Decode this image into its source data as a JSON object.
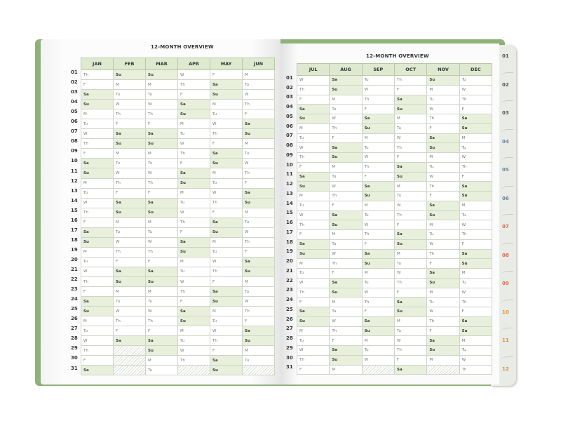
{
  "left_page": {
    "title": "12-MONTH OVERVIEW",
    "months": [
      {
        "name": "JAN",
        "days": [
          "Th",
          "F",
          "Sa",
          "Su",
          "M",
          "Tu",
          "W",
          "Th",
          "F",
          "Sa",
          "Su",
          "M",
          "Tu",
          "W",
          "Th",
          "F",
          "Sa",
          "Su",
          "M",
          "Tu",
          "W",
          "Th",
          "F",
          "Sa",
          "Su",
          "M",
          "Tu",
          "W",
          "Th",
          "F",
          "Sa"
        ]
      },
      {
        "name": "FEB",
        "days": [
          "Su",
          "M",
          "Tu",
          "W",
          "Th",
          "F",
          "Sa",
          "Su",
          "M",
          "Tu",
          "W",
          "Th",
          "F",
          "Sa",
          "Su",
          "M",
          "Tu",
          "W",
          "Th",
          "F",
          "Sa",
          "Su",
          "M",
          "Tu",
          "W",
          "Th",
          "F",
          "Sa"
        ]
      },
      {
        "name": "MAR",
        "days": [
          "Su",
          "M",
          "Tu",
          "W",
          "Th",
          "F",
          "Sa",
          "Su",
          "M",
          "Tu",
          "W",
          "Th",
          "F",
          "Sa",
          "Su",
          "M",
          "Tu",
          "W",
          "Th",
          "F",
          "Sa",
          "Su",
          "M",
          "Tu",
          "W",
          "Th",
          "F",
          "Sa",
          "Su",
          "M",
          "Tu"
        ]
      },
      {
        "name": "APR",
        "days": [
          "W",
          "Th",
          "F",
          "Sa",
          "Su",
          "M",
          "Tu",
          "W",
          "Th",
          "F",
          "Sa",
          "Su",
          "M",
          "Tu",
          "W",
          "Th",
          "F",
          "Sa",
          "Su",
          "M",
          "Tu",
          "W",
          "Th",
          "F",
          "Sa",
          "Su",
          "M",
          "Tu",
          "W",
          "Th"
        ]
      },
      {
        "name": "MAY",
        "days": [
          "F",
          "Sa",
          "Su",
          "M",
          "Tu",
          "W",
          "Th",
          "F",
          "Sa",
          "Su",
          "M",
          "Tu",
          "W",
          "Th",
          "F",
          "Sa",
          "Su",
          "M",
          "Tu",
          "W",
          "Th",
          "F",
          "Sa",
          "Su",
          "M",
          "Tu",
          "W",
          "Th",
          "F",
          "Sa",
          "Su"
        ]
      },
      {
        "name": "JUN",
        "days": [
          "M",
          "Tu",
          "W",
          "Th",
          "F",
          "Sa",
          "Su",
          "M",
          "Tu",
          "W",
          "Th",
          "F",
          "Sa",
          "Su",
          "M",
          "Tu",
          "W",
          "Th",
          "F",
          "Sa",
          "Su",
          "M",
          "Tu",
          "W",
          "Th",
          "F",
          "Sa",
          "Su",
          "M",
          "Tu"
        ]
      }
    ]
  },
  "right_page": {
    "title": "12-MONTH OVERVIEW",
    "months": [
      {
        "name": "JUL",
        "days": [
          "W",
          "Th",
          "F",
          "Sa",
          "Su",
          "M",
          "Tu",
          "W",
          "Th",
          "F",
          "Sa",
          "Su",
          "M",
          "Tu",
          "W",
          "Th",
          "F",
          "Sa",
          "Su",
          "M",
          "Tu",
          "W",
          "Th",
          "F",
          "Sa",
          "Su",
          "M",
          "Tu",
          "W",
          "Th",
          "F"
        ]
      },
      {
        "name": "AUG",
        "days": [
          "Sa",
          "Su",
          "M",
          "Tu",
          "W",
          "Th",
          "F",
          "Sa",
          "Su",
          "M",
          "Tu",
          "W",
          "Th",
          "F",
          "Sa",
          "Su",
          "M",
          "Tu",
          "W",
          "Th",
          "F",
          "Sa",
          "Su",
          "M",
          "Tu",
          "W",
          "Th",
          "F",
          "Sa",
          "Su",
          "M"
        ]
      },
      {
        "name": "SEP",
        "days": [
          "Tu",
          "W",
          "Th",
          "F",
          "Sa",
          "Su",
          "M",
          "Tu",
          "W",
          "Th",
          "F",
          "Sa",
          "Su",
          "M",
          "Tu",
          "W",
          "Th",
          "F",
          "Sa",
          "Su",
          "M",
          "Tu",
          "W",
          "Th",
          "F",
          "Sa",
          "Su",
          "M",
          "Tu",
          "W"
        ]
      },
      {
        "name": "OCT",
        "days": [
          "Th",
          "F",
          "Sa",
          "Su",
          "M",
          "Tu",
          "W",
          "Th",
          "F",
          "Sa",
          "Su",
          "M",
          "Tu",
          "W",
          "Th",
          "F",
          "Sa",
          "Su",
          "M",
          "Tu",
          "W",
          "Th",
          "F",
          "Sa",
          "Su",
          "M",
          "Tu",
          "W",
          "Th",
          "F",
          "Sa"
        ]
      },
      {
        "name": "NOV",
        "days": [
          "Su",
          "M",
          "Tu",
          "W",
          "Th",
          "F",
          "Sa",
          "Su",
          "M",
          "Tu",
          "W",
          "Th",
          "F",
          "Sa",
          "Su",
          "M",
          "Tu",
          "W",
          "Th",
          "F",
          "Sa",
          "Su",
          "M",
          "Tu",
          "W",
          "Th",
          "F",
          "Sa",
          "Su",
          "M"
        ]
      },
      {
        "name": "DEC",
        "days": [
          "Tu",
          "W",
          "Th",
          "F",
          "Sa",
          "Su",
          "M",
          "Tu",
          "W",
          "Th",
          "F",
          "Sa",
          "Su",
          "M",
          "Tu",
          "W",
          "Th",
          "F",
          "Sa",
          "Su",
          "M",
          "Tu",
          "W",
          "Th",
          "F",
          "Sa",
          "Su",
          "M",
          "Tu",
          "W",
          "Th"
        ]
      }
    ]
  },
  "row_numbers": [
    "01",
    "02",
    "03",
    "04",
    "05",
    "06",
    "07",
    "08",
    "09",
    "10",
    "11",
    "12",
    "13",
    "14",
    "15",
    "16",
    "17",
    "18",
    "19",
    "20",
    "21",
    "22",
    "23",
    "24",
    "25",
    "26",
    "27",
    "28",
    "29",
    "30",
    "31"
  ],
  "tabs": [
    {
      "label": "01",
      "color": "#555555"
    },
    {
      "label": "02",
      "color": "#555555"
    },
    {
      "label": "03",
      "color": "#555555"
    },
    {
      "label": "04",
      "color": "#6c8296"
    },
    {
      "label": "05",
      "color": "#6c8296"
    },
    {
      "label": "06",
      "color": "#6c8296"
    },
    {
      "label": "07",
      "color": "#d2694e"
    },
    {
      "label": "08",
      "color": "#d2694e"
    },
    {
      "label": "09",
      "color": "#d2694e"
    },
    {
      "label": "10",
      "color": "#d9902e"
    },
    {
      "label": "11",
      "color": "#d9902e"
    },
    {
      "label": "12",
      "color": "#d9902e"
    }
  ],
  "colors": {
    "header": "#dfe9cf",
    "weekend": "#e8f0dc",
    "cover": "#8fb17a"
  }
}
